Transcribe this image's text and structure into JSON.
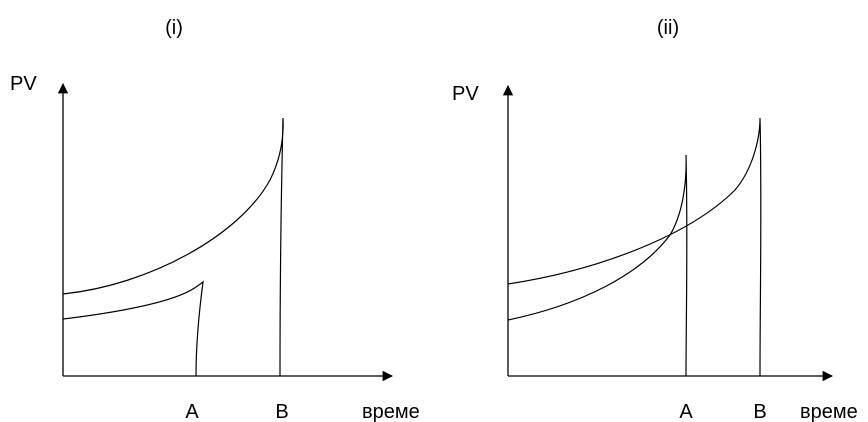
{
  "panels": [
    {
      "title": "(i)",
      "ylabel": "PV",
      "xlabel": "време",
      "markers": [
        "A",
        "B"
      ]
    },
    {
      "title": "(ii)",
      "ylabel": "PV",
      "xlabel": "време",
      "markers": [
        "A",
        "B"
      ]
    }
  ]
}
